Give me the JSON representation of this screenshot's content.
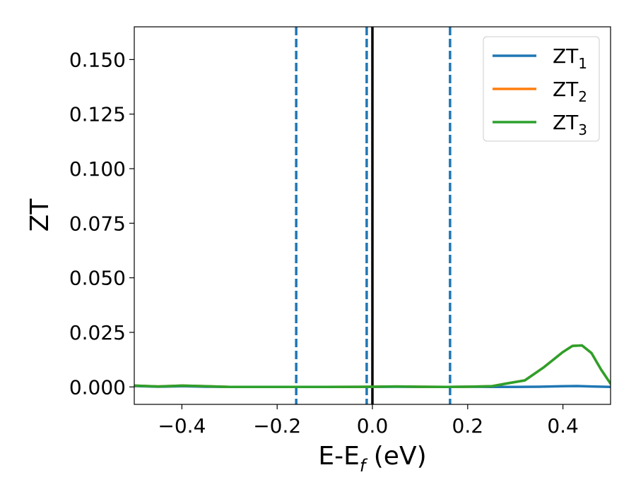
{
  "chart_data": {
    "type": "line",
    "xlabel_main": "E-E",
    "xlabel_sub": "f",
    "xlabel_unit": " (eV)",
    "ylabel": "ZT",
    "xlim": [
      -0.5,
      0.5
    ],
    "ylim": [
      -0.008,
      0.165
    ],
    "xticks": [
      -0.4,
      -0.2,
      0.0,
      0.2,
      0.4
    ],
    "xtick_labels": [
      "−0.4",
      "−0.2",
      "0.0",
      "0.2",
      "0.4"
    ],
    "yticks": [
      0.0,
      0.025,
      0.05,
      0.075,
      0.1,
      0.125,
      0.15
    ],
    "ytick_labels": [
      "0.000",
      "0.025",
      "0.050",
      "0.075",
      "0.100",
      "0.125",
      "0.150"
    ],
    "grid": false,
    "legend_placement": "top-right",
    "series": [
      {
        "name_main": "ZT",
        "name_sub": "1",
        "color": "#1f77b4",
        "x": [
          -0.5,
          -0.45,
          -0.4,
          -0.35,
          -0.3,
          -0.2,
          -0.1,
          0.0,
          0.05,
          0.1,
          0.15,
          0.2,
          0.25,
          0.3,
          0.35,
          0.4,
          0.43,
          0.46,
          0.5
        ],
        "y": [
          0.0004,
          0.0001,
          0.0003,
          0.0001,
          0.0,
          0.0,
          0.0,
          0.0,
          0.0001,
          0.0,
          0.0,
          0.0001,
          0.0,
          0.0,
          0.0001,
          0.0003,
          0.0004,
          0.0002,
          0.0
        ]
      },
      {
        "name_main": "ZT",
        "name_sub": "2",
        "color": "#ff7f0e",
        "x": [
          -0.5,
          -0.45,
          -0.4,
          -0.35,
          -0.3,
          -0.2,
          -0.1,
          0.0,
          0.05,
          0.1,
          0.15,
          0.2,
          0.25,
          0.28,
          0.32,
          0.36,
          0.4,
          0.42,
          0.44,
          0.46,
          0.48,
          0.5
        ],
        "y": [
          0.0006,
          0.0002,
          0.0006,
          0.0003,
          0.0,
          0.0,
          0.0,
          0.0001,
          0.0002,
          0.0001,
          0.0,
          0.0001,
          0.0003,
          0.0015,
          0.003,
          0.009,
          0.016,
          0.0188,
          0.019,
          0.0155,
          0.008,
          0.0015
        ]
      },
      {
        "name_main": "ZT",
        "name_sub": "3",
        "color": "#2ca02c",
        "x": [
          -0.5,
          -0.45,
          -0.4,
          -0.35,
          -0.3,
          -0.2,
          -0.1,
          0.0,
          0.05,
          0.1,
          0.15,
          0.2,
          0.25,
          0.28,
          0.32,
          0.36,
          0.4,
          0.42,
          0.44,
          0.46,
          0.48,
          0.5
        ],
        "y": [
          0.0006,
          0.0002,
          0.0006,
          0.0003,
          0.0,
          0.0,
          0.0,
          0.0001,
          0.0002,
          0.0001,
          0.0,
          0.0001,
          0.0003,
          0.0015,
          0.003,
          0.009,
          0.016,
          0.0188,
          0.019,
          0.0155,
          0.008,
          0.0015
        ]
      }
    ],
    "vlines": [
      {
        "x": -0.16,
        "style": "dashed",
        "color": "#1f77b4"
      },
      {
        "x": -0.012,
        "style": "dashed",
        "color": "#1f77b4"
      },
      {
        "x": 0.0,
        "style": "solid",
        "color": "#000000"
      },
      {
        "x": 0.163,
        "style": "dashed",
        "color": "#1f77b4"
      }
    ]
  }
}
